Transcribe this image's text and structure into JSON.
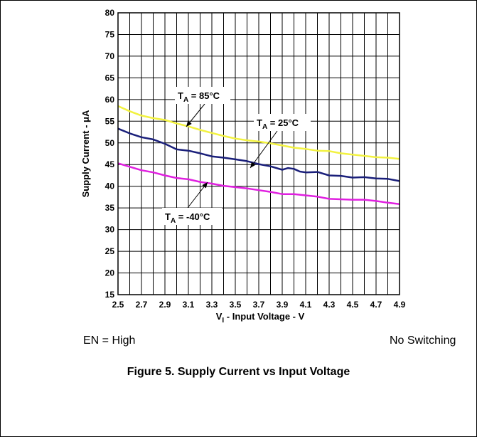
{
  "chart_data": {
    "type": "line",
    "xlabel_main": "V",
    "xlabel_sub": "I",
    "xlabel_rest": " - Input Voltage - V",
    "ylabel": "Supply Current - μA",
    "xlim": [
      2.5,
      4.9
    ],
    "ylim": [
      15,
      80
    ],
    "x_ticks": [
      "2.5",
      "2.7",
      "2.9",
      "3.1",
      "3.3",
      "3.5",
      "3.7",
      "3.9",
      "4.1",
      "4.3",
      "4.5",
      "4.7",
      "4.9"
    ],
    "y_ticks": [
      "15",
      "20",
      "25",
      "30",
      "35",
      "40",
      "45",
      "50",
      "55",
      "60",
      "65",
      "70",
      "75",
      "80"
    ],
    "grid": true,
    "series": [
      {
        "name": "85°C",
        "color": "#f2f240",
        "x": [
          2.5,
          2.6,
          2.7,
          2.8,
          2.9,
          3.0,
          3.1,
          3.2,
          3.3,
          3.4,
          3.5,
          3.6,
          3.7,
          3.8,
          3.9,
          4.0,
          4.1,
          4.2,
          4.3,
          4.4,
          4.5,
          4.6,
          4.7,
          4.8,
          4.9
        ],
        "y": [
          58.5,
          57.3,
          56.3,
          55.7,
          55.3,
          54.5,
          53.8,
          53.0,
          52.3,
          51.6,
          51.0,
          50.6,
          50.3,
          49.9,
          49.4,
          48.9,
          48.6,
          48.2,
          48.1,
          47.6,
          47.3,
          47.0,
          46.7,
          46.6,
          46.3
        ]
      },
      {
        "name": "25°C",
        "color": "#1a1f7a",
        "x": [
          2.5,
          2.6,
          2.7,
          2.8,
          2.9,
          3.0,
          3.1,
          3.2,
          3.3,
          3.4,
          3.5,
          3.6,
          3.7,
          3.8,
          3.9,
          3.95,
          4.0,
          4.05,
          4.1,
          4.2,
          4.3,
          4.4,
          4.5,
          4.6,
          4.7,
          4.8,
          4.9
        ],
        "y": [
          53.3,
          52.2,
          51.3,
          50.8,
          49.8,
          48.5,
          48.2,
          47.6,
          46.9,
          46.6,
          46.2,
          45.8,
          45.1,
          44.6,
          43.8,
          44.2,
          44.0,
          43.4,
          43.2,
          43.3,
          42.5,
          42.4,
          42.0,
          42.1,
          41.8,
          41.7,
          41.2
        ]
      },
      {
        "name": "-40°C",
        "color": "#e020e0",
        "x": [
          2.5,
          2.6,
          2.7,
          2.8,
          2.9,
          3.0,
          3.1,
          3.2,
          3.3,
          3.4,
          3.5,
          3.6,
          3.7,
          3.8,
          3.9,
          4.0,
          4.1,
          4.2,
          4.3,
          4.4,
          4.5,
          4.6,
          4.7,
          4.8,
          4.9
        ],
        "y": [
          45.3,
          44.5,
          43.7,
          43.2,
          42.5,
          41.9,
          41.6,
          41.0,
          40.6,
          40.1,
          39.8,
          39.5,
          39.1,
          38.7,
          38.2,
          38.2,
          37.9,
          37.6,
          37.1,
          37.0,
          36.9,
          36.9,
          36.6,
          36.2,
          35.9
        ]
      }
    ],
    "annotations": [
      {
        "prefix": "T",
        "sub": "A",
        "text": " = 85°C"
      },
      {
        "prefix": "T",
        "sub": "A",
        "text": " = 25°C"
      },
      {
        "prefix": "T",
        "sub": "A",
        "text": " = -40°C"
      }
    ]
  },
  "notes": {
    "left": "EN = High",
    "right": "No Switching"
  },
  "caption": "Figure 5. Supply Current vs Input Voltage"
}
